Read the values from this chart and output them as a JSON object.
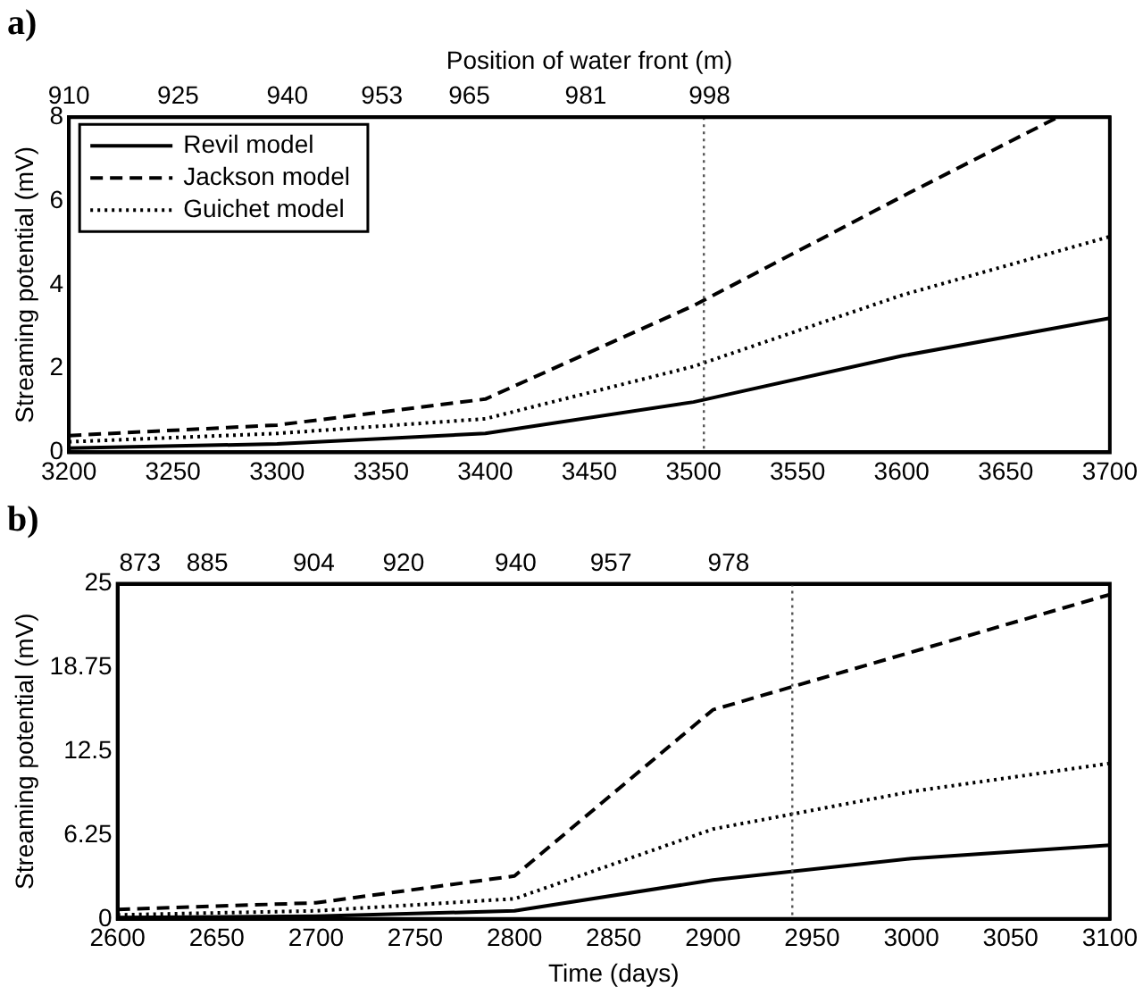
{
  "chart_data": [
    {
      "type": "line",
      "title": "a)",
      "ylabel": "Streaming potential (mV)",
      "x2label": "Position of water front (m)",
      "x": [
        3200,
        3300,
        3400,
        3500,
        3600,
        3700
      ],
      "series": [
        {
          "name": "Revil model",
          "color": "#000000",
          "line_style": "solid",
          "values": [
            0.1,
            0.2,
            0.45,
            1.2,
            2.3,
            3.2
          ]
        },
        {
          "name": "Jackson model",
          "color": "#000000",
          "line_style": "dashed",
          "x": [
            3200,
            3300,
            3400,
            3500,
            3600,
            3675
          ],
          "values": [
            0.4,
            0.65,
            1.27,
            3.5,
            6.1,
            8
          ]
        },
        {
          "name": "Guichet model",
          "color": "#000000",
          "line_style": "dotted",
          "values": [
            0.25,
            0.45,
            0.8,
            2.05,
            3.75,
            5.15
          ]
        }
      ],
      "xlim": [
        3200,
        3700
      ],
      "xticks": [
        3200,
        3250,
        3300,
        3350,
        3400,
        3450,
        3500,
        3550,
        3600,
        3650,
        3700
      ],
      "x2lim": [
        910,
        1053
      ],
      "x2ticks": [
        910,
        925,
        940,
        953,
        965,
        981,
        998
      ],
      "ylim": [
        0,
        8
      ],
      "yticks": [
        0,
        2,
        4,
        6,
        8
      ],
      "ref_lines": [
        {
          "axis": "x",
          "value": 3505,
          "color": "#555555",
          "line_style": "dotted"
        }
      ],
      "grid": false,
      "legend": "top left",
      "marker": "none"
    },
    {
      "type": "line",
      "title": "b)",
      "xlabel": "Time (days)",
      "ylabel": "Streaming potential (mV)",
      "x": [
        2600,
        2700,
        2800,
        2900,
        3000,
        3100
      ],
      "series": [
        {
          "color": "#000000",
          "line_style": "solid",
          "values": [
            0.1,
            0.2,
            0.6,
            2.9,
            4.5,
            5.5
          ]
        },
        {
          "color": "#000000",
          "line_style": "dashed",
          "values": [
            0.7,
            1.2,
            3.2,
            15.6,
            19.9,
            24.2
          ]
        },
        {
          "color": "#000000",
          "line_style": "dotted",
          "values": [
            0.3,
            0.6,
            1.5,
            6.7,
            9.5,
            11.6
          ]
        }
      ],
      "xlim": [
        2600,
        3100
      ],
      "xticks": [
        2600,
        2650,
        2700,
        2750,
        2800,
        2850,
        2900,
        2950,
        3000,
        3050,
        3100
      ],
      "x2lim": [
        869,
        1046
      ],
      "x2ticks": [
        873,
        885,
        904,
        920,
        940,
        957,
        978
      ],
      "ylim": [
        0,
        25
      ],
      "yticks": [
        0,
        6.25,
        12.5,
        18.75,
        25
      ],
      "ref_lines": [
        {
          "axis": "x",
          "value": 2940,
          "color": "#555555",
          "line_style": "dotted"
        }
      ],
      "grid": false,
      "legend": false,
      "marker": "none"
    }
  ]
}
